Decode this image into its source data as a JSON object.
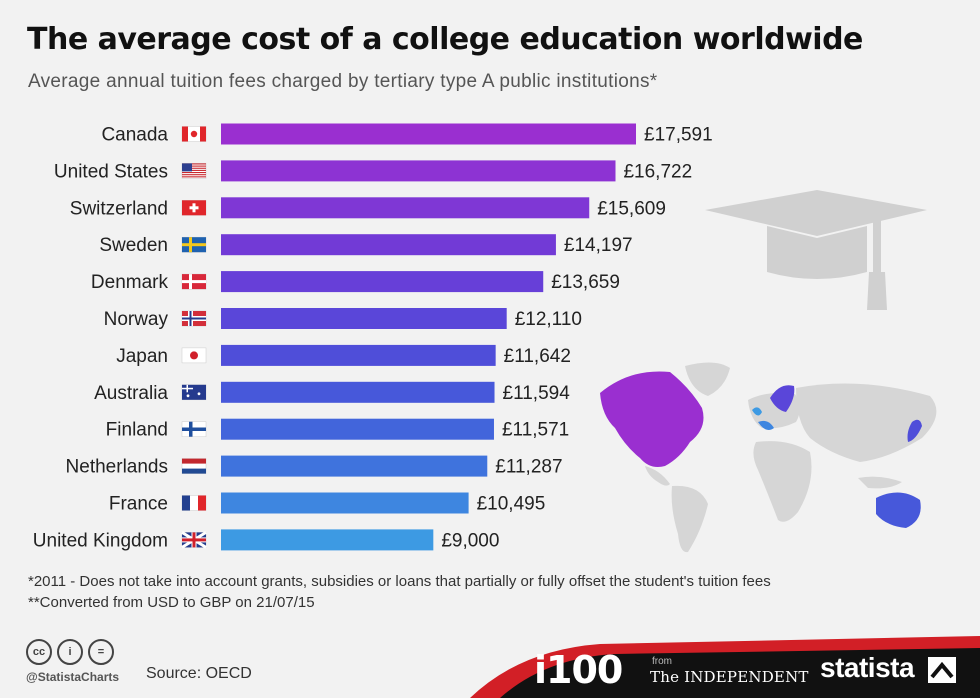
{
  "title": "The average cost of a college education worldwide",
  "subtitle": "Average annual tuition fees charged by tertiary type A public institutions*",
  "chart_data": {
    "type": "bar",
    "orientation": "horizontal",
    "categories": [
      "Canada",
      "United States",
      "Switzerland",
      "Sweden",
      "Denmark",
      "Norway",
      "Japan",
      "Australia",
      "Finland",
      "Netherlands",
      "France",
      "United Kingdom"
    ],
    "values": [
      17591,
      16722,
      15609,
      14197,
      13659,
      12110,
      11642,
      11594,
      11571,
      11287,
      10495,
      9000
    ],
    "value_labels": [
      "£17,591",
      "£16,722",
      "£15,609",
      "£14,197",
      "£13,659",
      "£12,110",
      "£11,642",
      "£11,594",
      "£11,571",
      "£11,287",
      "£10,495",
      "£9,000"
    ],
    "bar_colors": [
      "#9a2fd0",
      "#8d33d3",
      "#7f37d5",
      "#723ad6",
      "#673fd8",
      "#5a46d9",
      "#4f4ed9",
      "#4758da",
      "#4265db",
      "#3f73dd",
      "#3e86e0",
      "#3d9ae3"
    ],
    "title": "The average cost of a college education worldwide",
    "ylim": [
      0,
      20000
    ],
    "grid": false,
    "legend": "none"
  },
  "notes": {
    "note1": "*2011 - Does not take into account grants, subsidies or loans that partially or fully offset the student's tuition fees",
    "note2": "**Converted from USD to GBP on 21/07/15"
  },
  "footer": {
    "cc_labels": [
      "cc",
      "i",
      "="
    ],
    "handle": "@StatistaCharts",
    "source": "Source: OECD",
    "i100": "i100",
    "from": "from",
    "independent": "The INDEPENDENT",
    "statista": "statista"
  },
  "colors": {
    "footer_dark": "#111111",
    "footer_accent": "#d21f26",
    "map_grey": "#d6d6d6",
    "cap_grey": "#d0d0d0"
  }
}
